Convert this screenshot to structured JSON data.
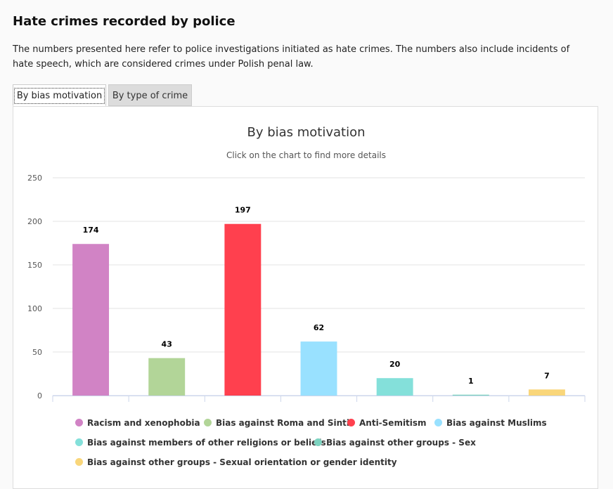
{
  "page": {
    "title": "Hate crimes recorded by police",
    "description": "The numbers presented here refer to police investigations initiated as hate crimes. The numbers also include incidents of hate speech, which are considered crimes under Polish penal law."
  },
  "tabs": [
    {
      "label": "By bias motivation",
      "active": true
    },
    {
      "label": "By type of crime",
      "active": false
    }
  ],
  "chart_data": {
    "type": "bar",
    "title": "By bias motivation",
    "subtitle": "Click on the chart to find more details",
    "ylim": [
      0,
      250
    ],
    "yticks": [
      0,
      50,
      100,
      150,
      200,
      250
    ],
    "grid": true,
    "legend_position": "bottom",
    "categories": [
      "Racism and xenophobia",
      "Bias against Roma and Sinti",
      "Anti-Semitism",
      "Bias against Muslims",
      "Bias against members of other religions or beliefs",
      "Bias against other groups - Sex",
      "Bias against other groups - Sexual orientation or gender identity"
    ],
    "values": [
      174,
      43,
      197,
      62,
      20,
      1,
      7
    ],
    "colors": [
      "#d183c5",
      "#b2d598",
      "#ff404e",
      "#99e1ff",
      "#84e0da",
      "#7dd3c0",
      "#f9d67a"
    ]
  }
}
